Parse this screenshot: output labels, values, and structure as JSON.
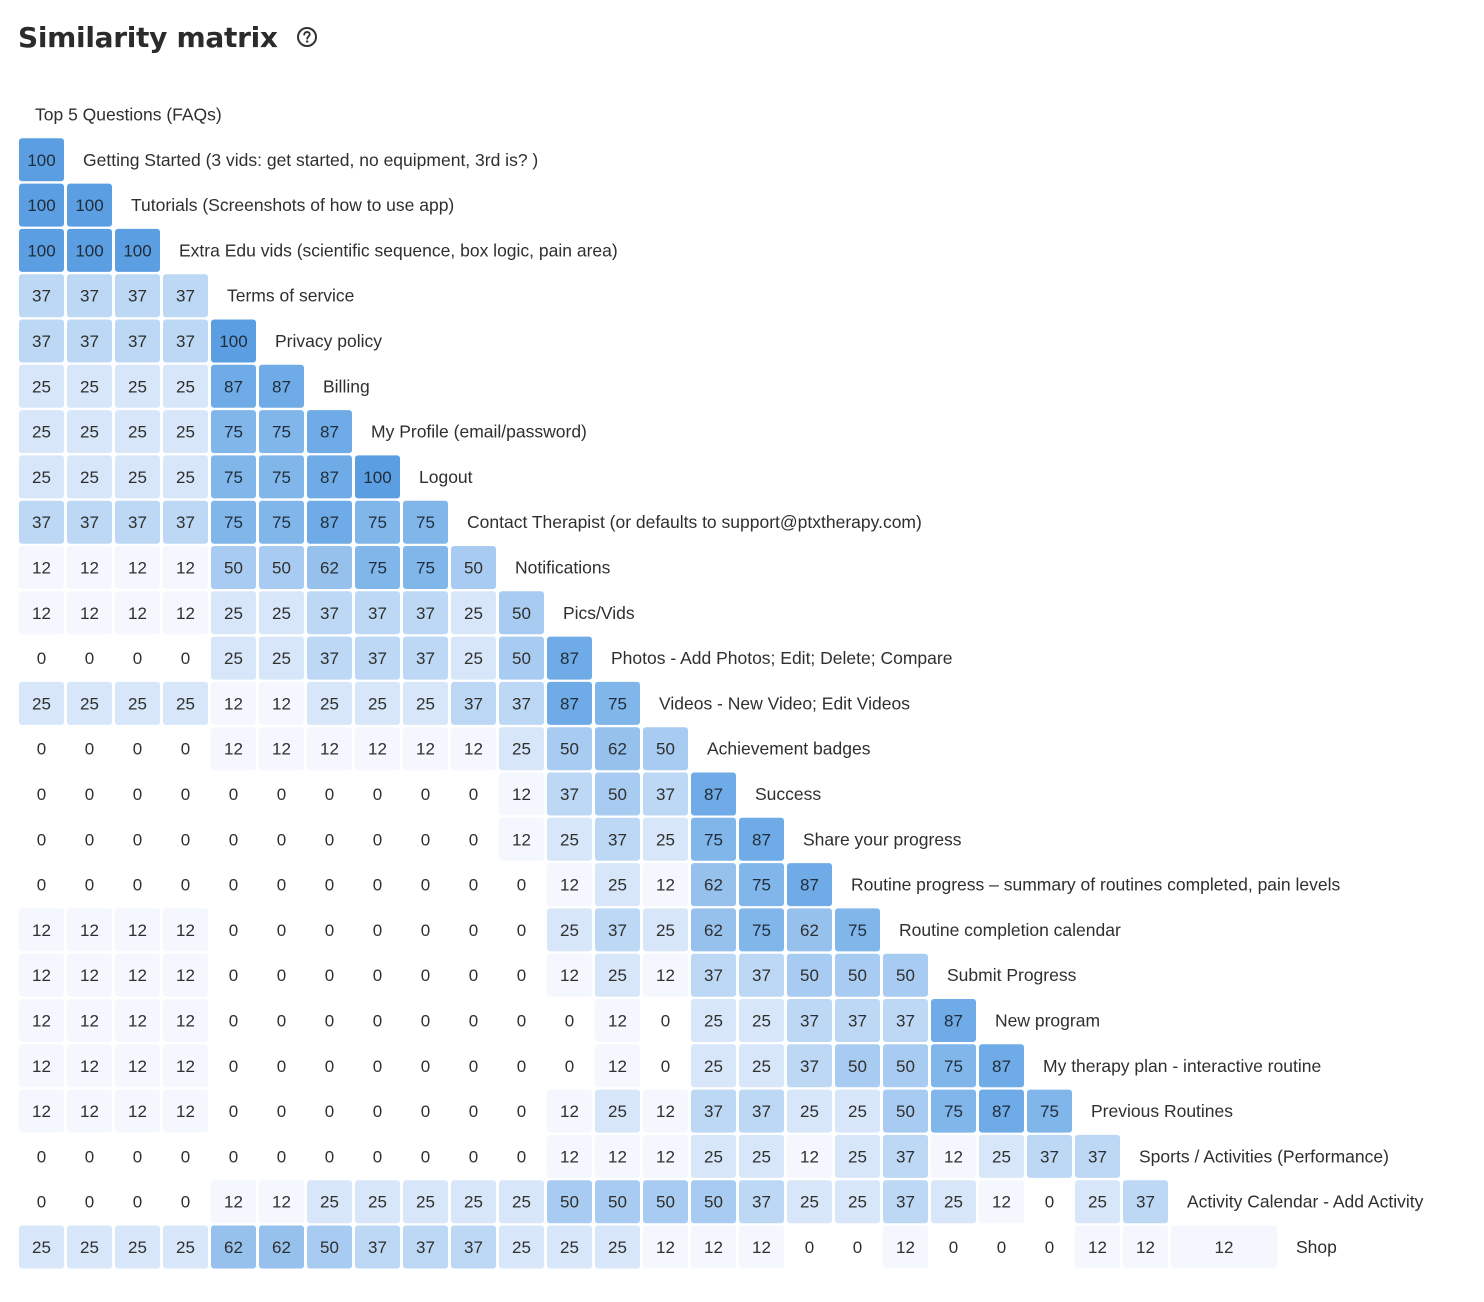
{
  "header": {
    "title": "Similarity matrix",
    "help_icon": "question-circle-icon"
  },
  "chart_data": {
    "type": "heatmap",
    "title": "Similarity matrix",
    "color_scale": {
      "low": "#f4f8fe",
      "mid": "#bcd8f5",
      "high": "#5b9fe2",
      "zero": "#ffffff"
    },
    "labels": [
      "Top 5 Questions (FAQs)",
      "Getting Started (3 vids: get started, no equipment, 3rd is? )",
      "Tutorials (Screenshots of how to use app)",
      "Extra Edu vids (scientific sequence, box logic, pain area)",
      "Terms of service",
      "Privacy policy",
      "Billing",
      "My Profile (email/password)",
      "Logout",
      "Contact Therapist (or defaults to support@ptxtherapy.com)",
      "Notifications",
      "Pics/Vids",
      "Photos - Add Photos; Edit; Delete; Compare",
      "Videos - New Video; Edit Videos",
      "Achievement badges",
      "Success",
      "Share your progress",
      "Routine progress – summary of routines completed, pain levels",
      "Routine completion calendar",
      "Submit Progress",
      "New program",
      "My therapy plan - interactive routine",
      "Previous Routines",
      "Sports / Activities (Performance)",
      "Activity Calendar - Add Activity",
      "Shop"
    ],
    "values": [
      [],
      [
        100
      ],
      [
        100,
        100
      ],
      [
        100,
        100,
        100
      ],
      [
        37,
        37,
        37,
        37
      ],
      [
        37,
        37,
        37,
        37,
        100
      ],
      [
        25,
        25,
        25,
        25,
        87,
        87
      ],
      [
        25,
        25,
        25,
        25,
        75,
        75,
        87
      ],
      [
        25,
        25,
        25,
        25,
        75,
        75,
        87,
        100
      ],
      [
        37,
        37,
        37,
        37,
        75,
        75,
        87,
        75,
        75
      ],
      [
        12,
        12,
        12,
        12,
        50,
        50,
        62,
        75,
        75,
        50
      ],
      [
        12,
        12,
        12,
        12,
        25,
        25,
        37,
        37,
        37,
        25,
        50
      ],
      [
        0,
        0,
        0,
        0,
        25,
        25,
        37,
        37,
        37,
        25,
        50,
        87
      ],
      [
        25,
        25,
        25,
        25,
        12,
        12,
        25,
        25,
        25,
        37,
        37,
        87,
        75
      ],
      [
        0,
        0,
        0,
        0,
        12,
        12,
        12,
        12,
        12,
        12,
        25,
        50,
        62,
        50
      ],
      [
        0,
        0,
        0,
        0,
        0,
        0,
        0,
        0,
        0,
        0,
        12,
        37,
        50,
        37,
        87
      ],
      [
        0,
        0,
        0,
        0,
        0,
        0,
        0,
        0,
        0,
        0,
        12,
        25,
        37,
        25,
        75,
        87
      ],
      [
        0,
        0,
        0,
        0,
        0,
        0,
        0,
        0,
        0,
        0,
        0,
        12,
        25,
        12,
        62,
        75,
        87
      ],
      [
        12,
        12,
        12,
        12,
        0,
        0,
        0,
        0,
        0,
        0,
        0,
        25,
        37,
        25,
        62,
        75,
        62,
        75
      ],
      [
        12,
        12,
        12,
        12,
        0,
        0,
        0,
        0,
        0,
        0,
        0,
        12,
        25,
        12,
        37,
        37,
        50,
        50,
        50
      ],
      [
        12,
        12,
        12,
        12,
        0,
        0,
        0,
        0,
        0,
        0,
        0,
        0,
        12,
        0,
        25,
        25,
        37,
        37,
        37,
        87
      ],
      [
        12,
        12,
        12,
        12,
        0,
        0,
        0,
        0,
        0,
        0,
        0,
        0,
        12,
        0,
        25,
        25,
        37,
        50,
        50,
        75,
        87
      ],
      [
        12,
        12,
        12,
        12,
        0,
        0,
        0,
        0,
        0,
        0,
        0,
        12,
        25,
        12,
        37,
        37,
        25,
        25,
        50,
        75,
        87,
        75
      ],
      [
        0,
        0,
        0,
        0,
        0,
        0,
        0,
        0,
        0,
        0,
        0,
        12,
        12,
        12,
        25,
        25,
        12,
        25,
        37,
        12,
        25,
        37,
        37
      ],
      [
        0,
        0,
        0,
        0,
        12,
        12,
        25,
        25,
        25,
        25,
        25,
        50,
        50,
        50,
        50,
        37,
        25,
        25,
        37,
        25,
        12,
        0,
        25,
        37
      ],
      [
        25,
        25,
        25,
        25,
        62,
        62,
        50,
        37,
        37,
        37,
        25,
        25,
        25,
        12,
        12,
        12,
        0,
        0,
        12,
        0,
        0,
        0,
        12,
        12,
        12
      ]
    ]
  }
}
